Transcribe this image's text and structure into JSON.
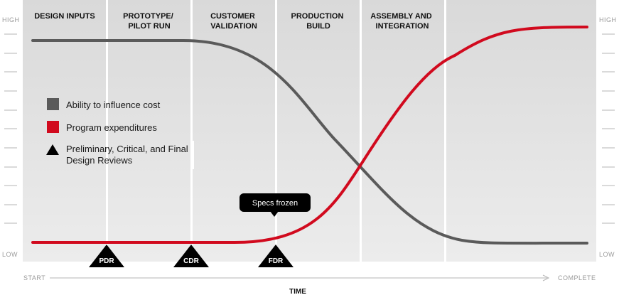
{
  "phases": [
    "DESIGN INPUTS",
    "PROTOTYPE/\nPILOT RUN",
    "CUSTOMER\nVALIDATION",
    "PRODUCTION\nBUILD",
    "ASSEMBLY AND\nINTEGRATION",
    ""
  ],
  "y_axis": {
    "high_label": "HIGH",
    "low_label": "LOW"
  },
  "x_axis": {
    "start_label": "START",
    "end_label": "COMPLETE",
    "title": "TIME"
  },
  "legend": [
    {
      "label": "Ability to influence cost",
      "marker": "square",
      "color": "#5a5a5a"
    },
    {
      "label": "Program expenditures",
      "marker": "square",
      "color": "#d10a1e"
    },
    {
      "label": "Preliminary, Critical, and Final\nDesign Reviews",
      "marker": "triangle",
      "color": "#000000"
    }
  ],
  "reviews": [
    "PDR",
    "CDR",
    "FDR"
  ],
  "callout": "Specs frozen",
  "colors": {
    "panel": "#e0e0e0",
    "gray_curve": "#5a5a5a",
    "red_curve": "#d10a1e",
    "separator": "#ffffff"
  }
}
